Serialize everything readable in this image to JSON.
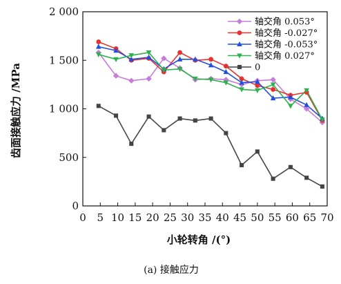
{
  "chart_data": {
    "type": "line",
    "xlabel": "小轮转角 /(°)",
    "ylabel": "齿面接触应力 /MPa",
    "caption": "(a) 接触应力",
    "xlim": [
      0,
      70
    ],
    "ylim": [
      0,
      2000
    ],
    "xticks": [
      0,
      5,
      10,
      15,
      20,
      25,
      30,
      35,
      40,
      45,
      50,
      55,
      60,
      65,
      70
    ],
    "xtick_labels": [
      "0",
      "5",
      "10",
      "15",
      "20",
      "25",
      "30",
      "35",
      "40",
      "45",
      "50",
      "55",
      "60",
      "65",
      "70"
    ],
    "yticks": [
      0,
      500,
      1000,
      1500,
      2000
    ],
    "ytick_labels": [
      "0",
      "500",
      "1 000",
      "1 500",
      "2 000"
    ],
    "legend_position": "top-right",
    "grid": false,
    "series": [
      {
        "name": "轴交角 0.053°",
        "color": "#c77cd9",
        "marker": "diamond",
        "x": [
          4.5,
          9.5,
          13.9,
          18.9,
          23.2,
          27.8,
          32.2,
          36.7,
          41,
          45.5,
          50,
          54.5,
          59.5,
          64.1,
          68.6
        ],
        "y": [
          1580,
          1340,
          1290,
          1310,
          1520,
          1420,
          1300,
          1310,
          1300,
          1250,
          1290,
          1300,
          1100,
          1000,
          860
        ]
      },
      {
        "name": "轴交角 -0.027°",
        "color": "#e8312f",
        "marker": "circle",
        "x": [
          4.5,
          9.5,
          13.9,
          18.9,
          23.2,
          27.8,
          32.2,
          36.7,
          41,
          45.5,
          50,
          54.5,
          59.5,
          64.1,
          68.6
        ],
        "y": [
          1690,
          1620,
          1500,
          1520,
          1380,
          1580,
          1500,
          1510,
          1440,
          1310,
          1240,
          1200,
          1140,
          1170,
          880
        ]
      },
      {
        "name": "轴交角 -0.053°",
        "color": "#1f4fe0",
        "marker": "triangle-up",
        "x": [
          4.5,
          9.5,
          13.9,
          18.9,
          23.2,
          27.8,
          32.2,
          36.7,
          41,
          45.5,
          50,
          54.5,
          59.5,
          64.1,
          68.6
        ],
        "y": [
          1640,
          1600,
          1510,
          1530,
          1410,
          1510,
          1510,
          1450,
          1380,
          1270,
          1280,
          1110,
          1120,
          1040,
          900
        ]
      },
      {
        "name": "轴交角 0.027°",
        "color": "#2bb24c",
        "marker": "triangle-down",
        "x": [
          4.5,
          9.5,
          13.9,
          18.9,
          23.2,
          27.8,
          32.2,
          36.7,
          41,
          45.5,
          50,
          54.5,
          59.5,
          64.1,
          68.6
        ],
        "y": [
          1560,
          1510,
          1550,
          1580,
          1400,
          1410,
          1310,
          1300,
          1270,
          1200,
          1190,
          1250,
          1030,
          1190,
          890
        ]
      },
      {
        "name": "0",
        "color": "#444444",
        "marker": "square",
        "x": [
          4.5,
          9.5,
          13.9,
          18.9,
          23.2,
          27.8,
          32.2,
          36.7,
          41,
          45.5,
          50,
          54.5,
          59.5,
          64.1,
          68.6
        ],
        "y": [
          1030,
          930,
          640,
          920,
          780,
          900,
          880,
          900,
          750,
          420,
          560,
          280,
          400,
          290,
          200
        ]
      }
    ]
  }
}
